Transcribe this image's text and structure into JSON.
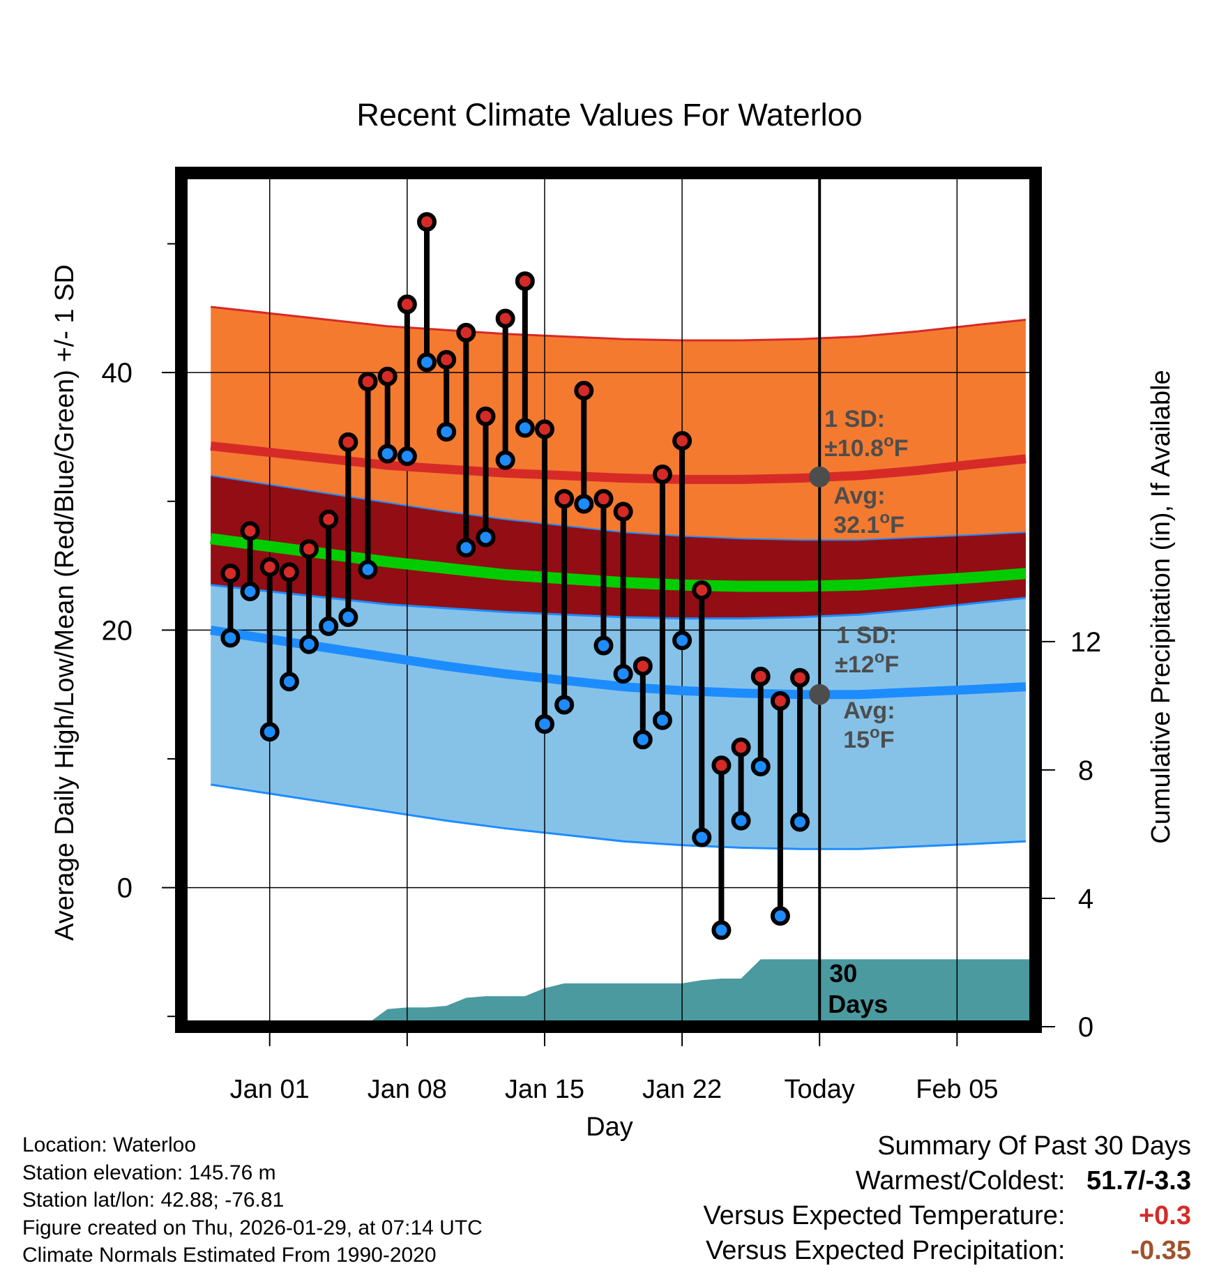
{
  "chart_data": {
    "type": "line",
    "title": "Recent Climate Values For Waterloo",
    "xlabel": "Day",
    "ylabel_left": "Average Daily High/Low/Mean (Red/Blue/Green) +/- 1 SD",
    "ylabel_right": "Cumulative Precipitation (in), If Available",
    "x_day_range": [
      -4.5,
      39
    ],
    "ylim_left": [
      -10.8,
      55.5
    ],
    "ylim_right": [
      0,
      26.6
    ],
    "x_ticks": [
      {
        "day": 0,
        "label": "Jan 01"
      },
      {
        "day": 7,
        "label": "Jan 08"
      },
      {
        "day": 14,
        "label": "Jan 15"
      },
      {
        "day": 21,
        "label": "Jan 22"
      },
      {
        "day": 28,
        "label": "Today"
      },
      {
        "day": 35,
        "label": "Feb 05"
      }
    ],
    "y_left_ticks": [
      0,
      20,
      40
    ],
    "y_left_minor_ticks": [
      -10,
      10,
      30,
      50
    ],
    "y_right_ticks": [
      0,
      4,
      8,
      12
    ],
    "today_day": 28,
    "normals": {
      "days": [
        -3,
        0,
        3,
        6,
        9,
        12,
        15,
        18,
        21,
        24,
        27,
        30,
        33,
        36,
        38.5
      ],
      "high_mean": [
        34.3,
        33.8,
        33.3,
        32.8,
        32.5,
        32.2,
        32.0,
        31.8,
        31.7,
        31.7,
        31.8,
        32.0,
        32.4,
        32.9,
        33.3
      ],
      "high_sd": 10.8,
      "low_mean": [
        20.0,
        19.3,
        18.6,
        17.9,
        17.2,
        16.6,
        16.1,
        15.6,
        15.3,
        15.1,
        15.0,
        15.0,
        15.2,
        15.4,
        15.6
      ],
      "low_sd": 12,
      "mean_mean": [
        27.1,
        26.5,
        25.9,
        25.3,
        24.8,
        24.3,
        24.0,
        23.7,
        23.5,
        23.4,
        23.4,
        23.5,
        23.8,
        24.1,
        24.4
      ]
    },
    "series": [
      {
        "name": "High",
        "values": [
          24.4,
          27.7,
          24.9,
          24.5,
          26.3,
          28.6,
          34.6,
          39.3,
          39.7,
          45.3,
          51.7,
          41.0,
          43.1,
          36.6,
          44.2,
          47.1,
          35.6,
          30.2,
          38.6,
          30.2,
          29.2,
          17.2,
          32.1,
          34.7,
          23.1,
          9.5,
          10.9,
          16.4,
          14.5,
          16.3
        ]
      },
      {
        "name": "Low",
        "values": [
          19.4,
          23.0,
          12.1,
          16.0,
          18.9,
          20.3,
          21.0,
          24.7,
          33.7,
          33.5,
          40.8,
          35.4,
          26.4,
          27.2,
          33.2,
          35.7,
          12.7,
          14.2,
          29.8,
          18.8,
          16.6,
          11.5,
          13.0,
          19.2,
          3.9,
          -3.3,
          5.2,
          9.4,
          -2.2,
          5.1
        ]
      }
    ],
    "obs_start_day": -2,
    "precip_cumulative": {
      "days": [
        -2,
        1,
        3,
        4,
        5,
        6,
        7,
        8,
        9,
        10,
        11,
        12,
        13,
        14,
        15,
        16,
        17,
        18,
        19,
        20,
        21,
        22,
        23,
        24,
        25,
        26,
        27,
        28,
        29,
        30,
        31,
        39
      ],
      "values": [
        0,
        0,
        0,
        0,
        0.1,
        0.55,
        0.6,
        0.6,
        0.65,
        0.9,
        0.95,
        0.95,
        0.95,
        1.2,
        1.35,
        1.35,
        1.35,
        1.35,
        1.35,
        1.35,
        1.35,
        1.45,
        1.5,
        1.5,
        2.1,
        2.1,
        2.1,
        2.1,
        2.1,
        2.1,
        2.1,
        2.1
      ]
    },
    "annotations": {
      "high_sd_label": "1 SD:",
      "high_sd_value": "±10.8°F",
      "high_avg_label": "Avg:",
      "high_avg_value": "32.1°F",
      "low_sd_label": "1 SD:",
      "low_sd_value": "±12°F",
      "low_avg_label": "Avg:",
      "low_avg_value": "15°F",
      "days_count": "30",
      "days_word": "Days"
    },
    "colors": {
      "high_band": "#f47a30",
      "high_line": "#d62a27",
      "mean_band": "#920e14",
      "mean_line": "#00cc00",
      "low_band": "#86c2e8",
      "low_line": "#1d8cff",
      "precip": "#4a9aa0",
      "high_marker": "#d62a27",
      "low_marker": "#1d8cff",
      "annotation": "#4d4d4d"
    }
  },
  "info": {
    "location": "Location: Waterloo",
    "elevation": "Station elevation: 145.76 m",
    "latlon": "Station lat/lon: 42.88; -76.81",
    "created": "Figure created on Thu, 2026-01-29, at 07:14 UTC",
    "normals": "Climate Normals Estimated From 1990-2020"
  },
  "summary": {
    "title": "Summary Of Past 30 Days",
    "warm_cold_label": "Warmest/Coldest:",
    "warm_cold_value": "51.7/-3.3",
    "temp_label": "Versus Expected Temperature:",
    "temp_value": "+0.3",
    "temp_color": "#d62a27",
    "precip_label": "Versus Expected Precipitation:",
    "precip_value": "-0.35",
    "precip_color": "#a0522d"
  }
}
